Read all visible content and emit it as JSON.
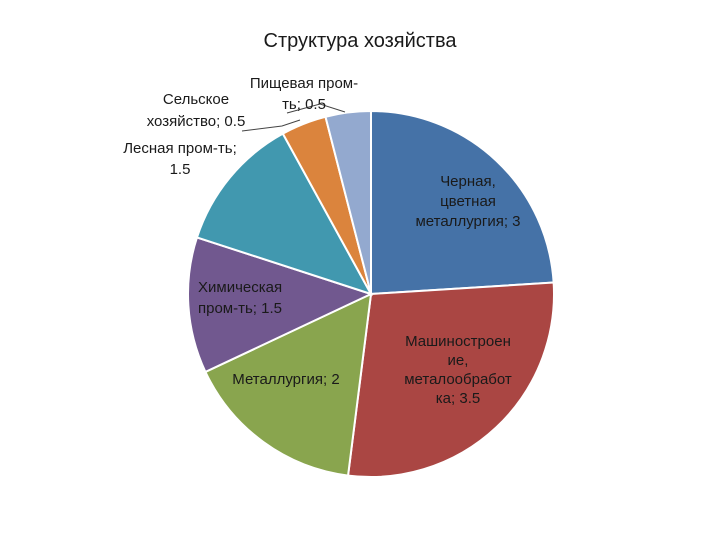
{
  "chart_data": {
    "type": "pie",
    "title": "Структура хозяйства",
    "start_angle_deg": 0,
    "direction": "clockwise",
    "slices": [
      {
        "label_lines": [
          "Черная,",
          "цветная",
          "металлургия; 3"
        ],
        "name": "Черная, цветная металлургия",
        "value": 3,
        "color": "#4572A7"
      },
      {
        "label_lines": [
          "Машиностроен",
          "ие,",
          "металообработ",
          "ка; 3.5"
        ],
        "name": "Машиностроение, металообработка",
        "value": 3.5,
        "color": "#AA4643"
      },
      {
        "label_lines": [
          "Металлургия; 2"
        ],
        "name": "Металлургия",
        "value": 2,
        "color": "#89A54E"
      },
      {
        "label_lines": [
          "Химическая",
          "пром-ть; 1.5"
        ],
        "name": "Химическая пром-ть",
        "value": 1.5,
        "color": "#71588F"
      },
      {
        "label_lines": [
          "Лесная пром-ть;",
          "1.5"
        ],
        "name": "Лесная пром-ть",
        "value": 1.5,
        "color": "#4198AF"
      },
      {
        "label_lines": [
          "Сельское",
          "хозяйство; 0.5"
        ],
        "name": "Сельское хозяйство",
        "value": 0.5,
        "color": "#DB843D"
      },
      {
        "label_lines": [
          "Пищевая пром-",
          "ть; 0.5"
        ],
        "name": "Пищевая пром-ть",
        "value": 0.5,
        "color": "#93A9CF"
      }
    ]
  }
}
